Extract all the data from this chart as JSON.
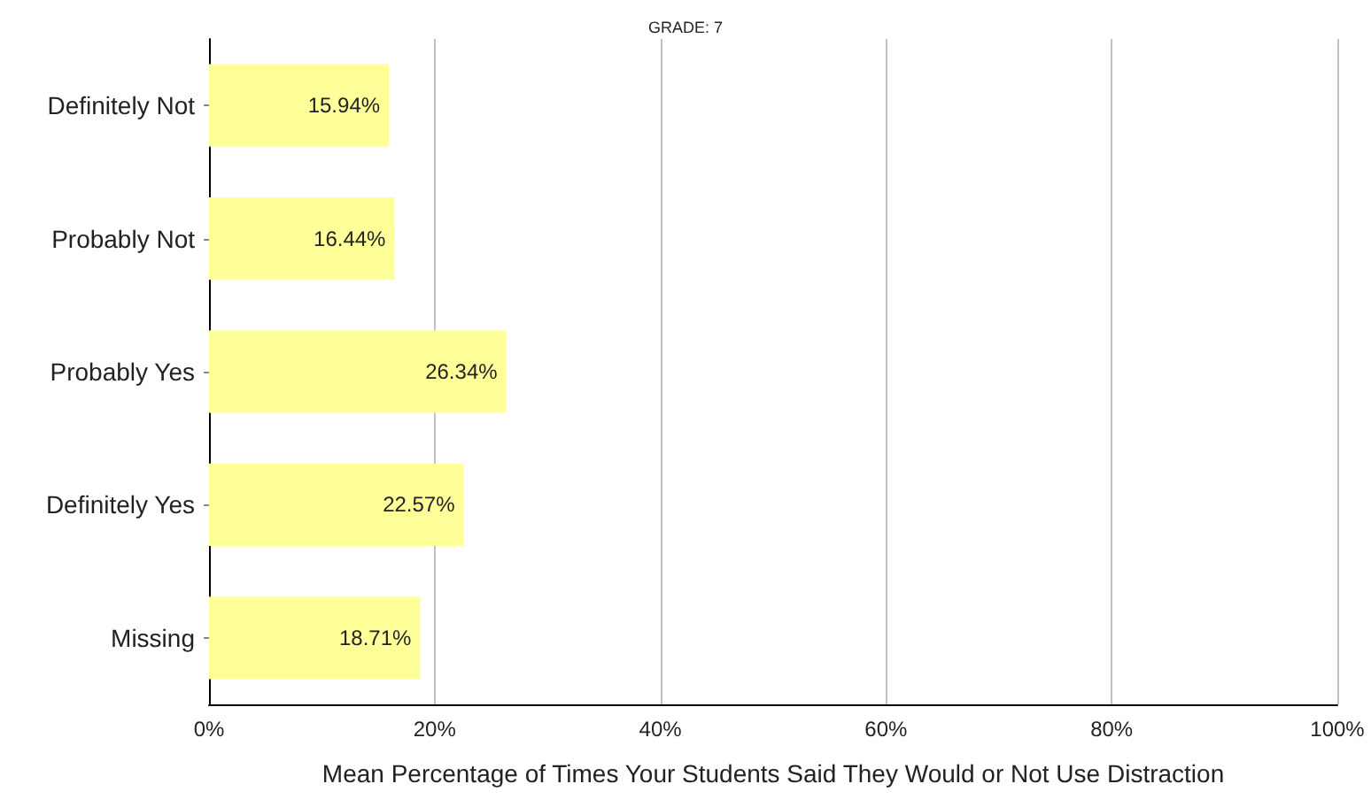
{
  "chart_data": {
    "type": "bar",
    "orientation": "horizontal",
    "title": "GRADE: 7",
    "xlabel": "Mean Percentage of Times Your Students Said They Would or Not Use Distraction",
    "categories": [
      "Definitely Not",
      "Probably Not",
      "Probably Yes",
      "Definitely Yes",
      "Missing"
    ],
    "values": [
      15.94,
      16.44,
      26.34,
      22.57,
      18.71
    ],
    "value_labels": [
      "15.94%",
      "16.44%",
      "26.34%",
      "22.57%",
      "18.71%"
    ],
    "color": "#ffff99",
    "xlim": [
      0,
      100
    ],
    "xticks": [
      {
        "value": 0,
        "label": "0%"
      },
      {
        "value": 20,
        "label": "20%"
      },
      {
        "value": 40,
        "label": "40%"
      },
      {
        "value": 60,
        "label": "60%"
      },
      {
        "value": 80,
        "label": "80%"
      },
      {
        "value": 100,
        "label": "100%"
      }
    ],
    "grid": "x"
  }
}
